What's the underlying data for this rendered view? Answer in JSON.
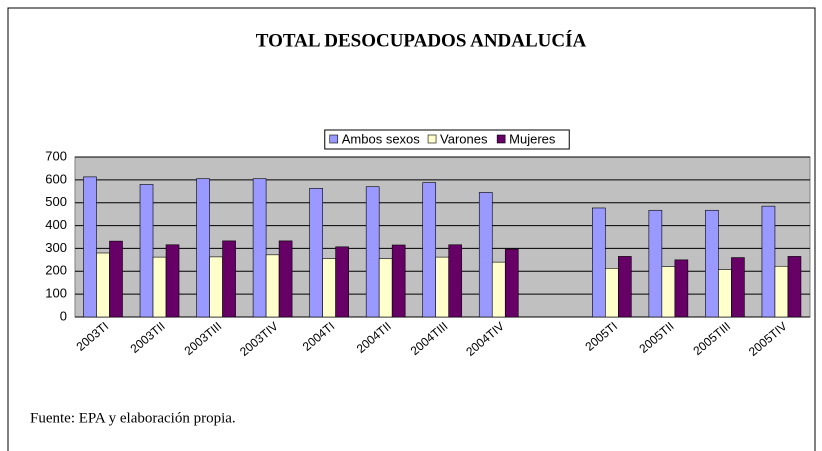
{
  "chart_data": {
    "type": "bar",
    "title": "TOTAL DESOCUPADOS ANDALUCÍA",
    "footnote": "Fuente: EPA y elaboración propia.",
    "categories": [
      "2003TI",
      "2003TII",
      "2003TIII",
      "2003TIV",
      "2004TI",
      "2004TII",
      "2004TIII",
      "2004TIV",
      null,
      "2005TI",
      "2005TII",
      "2005TIII",
      "2005TIV"
    ],
    "series": [
      {
        "name": "Ambos sexos",
        "color": "#9999ff",
        "values": [
          613,
          580,
          605,
          605,
          563,
          570,
          588,
          545,
          null,
          477,
          467,
          467,
          485
        ]
      },
      {
        "name": "Varones",
        "color": "#ffffcc",
        "values": [
          280,
          262,
          263,
          272,
          255,
          255,
          262,
          240,
          null,
          213,
          220,
          207,
          222
        ]
      },
      {
        "name": "Mujeres",
        "color": "#660066",
        "values": [
          332,
          316,
          333,
          333,
          307,
          315,
          316,
          297,
          null,
          265,
          250,
          260,
          265
        ]
      }
    ],
    "ylim": [
      0,
      700
    ],
    "yticks": [
      0,
      100,
      200,
      300,
      400,
      500,
      600,
      700
    ],
    "grid": true,
    "legend": "top"
  }
}
